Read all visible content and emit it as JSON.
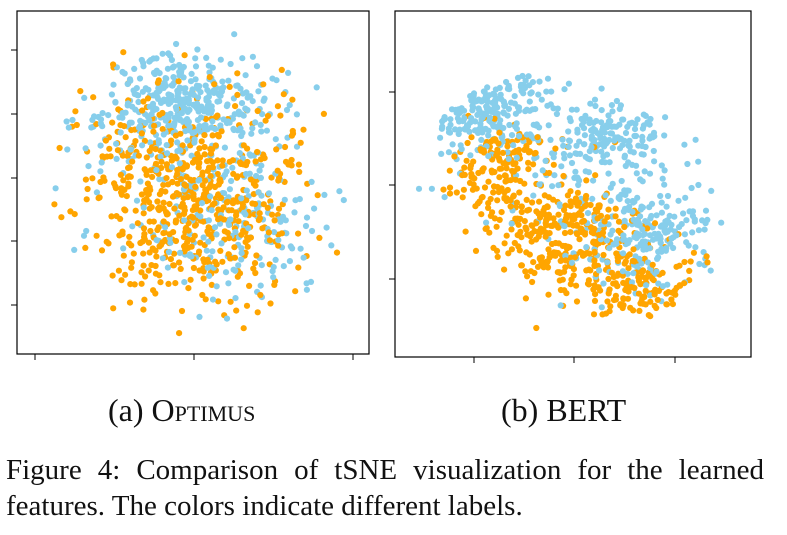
{
  "figure_caption": "Figure 4:  Comparison of tSNE visualization for the learned features. The colors indicate different labels.",
  "colors": {
    "label_a": "#87CEEB",
    "label_b": "#FFA500",
    "axes": "#000000"
  },
  "chart_data": [
    {
      "type": "scatter",
      "subcaption_prefix": "(a) ",
      "subcaption_name": "Optimus",
      "title": "",
      "xlabel": "",
      "ylabel": "",
      "x_ticks": 3,
      "y_ticks": 5,
      "tick_labels_shown": false,
      "grid": false,
      "legend": "none",
      "series": [
        {
          "color": "#FFA500",
          "count": 620,
          "clusters": [
            {
              "center": [
                0.0,
                -0.18
              ],
              "spread": [
                0.55,
                0.55
              ],
              "weight": 0.7
            },
            {
              "center": [
                -0.1,
                0.2
              ],
              "spread": [
                0.75,
                0.6
              ],
              "weight": 0.3
            }
          ],
          "extent": "disk"
        },
        {
          "color": "#87CEEB",
          "count": 600,
          "clusters": [
            {
              "center": [
                -0.05,
                0.5
              ],
              "spread": [
                0.45,
                0.3
              ],
              "weight": 0.55
            },
            {
              "center": [
                0.3,
                -0.3
              ],
              "spread": [
                0.45,
                0.45
              ],
              "weight": 0.25
            },
            {
              "center": [
                0.0,
                0.0
              ],
              "spread": [
                0.8,
                0.8
              ],
              "weight": 0.2
            }
          ],
          "extent": "disk"
        }
      ]
    },
    {
      "type": "scatter",
      "subcaption_prefix": "(b) ",
      "subcaption_name": "BERT",
      "title": "",
      "xlabel": "",
      "ylabel": "",
      "x_ticks": 3,
      "y_ticks": 3,
      "tick_labels_shown": false,
      "grid": false,
      "legend": "none",
      "series": [
        {
          "color": "#87CEEB",
          "count": 650,
          "clusters": [
            {
              "center": [
                -0.55,
                0.55
              ],
              "spread": [
                0.35,
                0.3
              ],
              "weight": 0.45
            },
            {
              "center": [
                0.2,
                0.3
              ],
              "spread": [
                0.35,
                0.2
              ],
              "weight": 0.2
            },
            {
              "center": [
                0.45,
                -0.3
              ],
              "spread": [
                0.3,
                0.3
              ],
              "weight": 0.2
            },
            {
              "center": [
                0.0,
                0.0
              ],
              "spread": [
                0.7,
                0.6
              ],
              "weight": 0.15
            }
          ],
          "extent": "blob"
        },
        {
          "color": "#FFA500",
          "count": 600,
          "clusters": [
            {
              "center": [
                -0.05,
                -0.35
              ],
              "spread": [
                0.4,
                0.3
              ],
              "weight": 0.5
            },
            {
              "center": [
                -0.45,
                0.1
              ],
              "spread": [
                0.3,
                0.25
              ],
              "weight": 0.25
            },
            {
              "center": [
                0.4,
                -0.65
              ],
              "spread": [
                0.35,
                0.2
              ],
              "weight": 0.25
            }
          ],
          "extent": "blob"
        }
      ]
    }
  ]
}
